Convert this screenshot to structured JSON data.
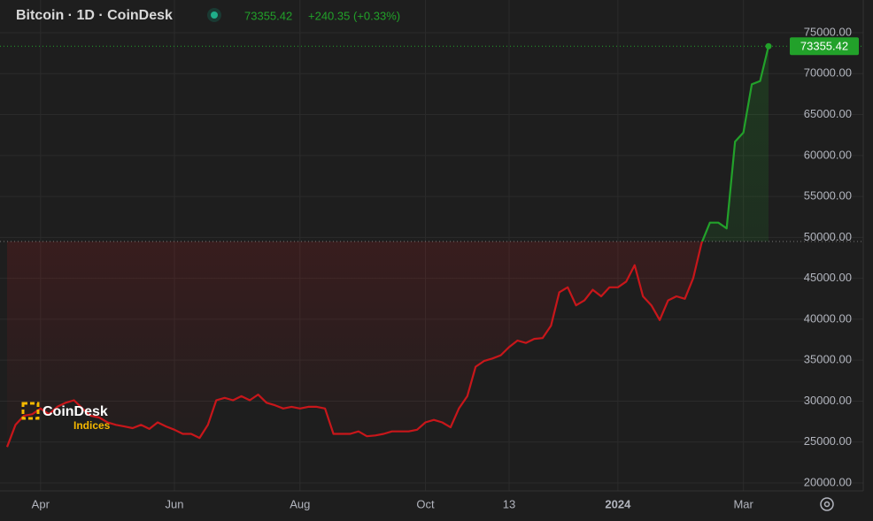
{
  "header": {
    "title": "Bitcoin · 1D · CoinDesk",
    "change": "+240.35 (+0.33%)"
  },
  "watermark": {
    "name": "CoinDesk",
    "sub": "Indices"
  },
  "chart_data": {
    "type": "line",
    "categories": [
      null,
      null,
      null,
      null,
      "Apr",
      null,
      null,
      null,
      null,
      null,
      null,
      null,
      null,
      null,
      null,
      null,
      null,
      null,
      null,
      null,
      "Jun",
      null,
      null,
      null,
      null,
      null,
      null,
      null,
      null,
      null,
      null,
      null,
      null,
      null,
      null,
      "Aug",
      null,
      null,
      null,
      null,
      null,
      null,
      null,
      null,
      null,
      null,
      null,
      null,
      null,
      null,
      "Oct",
      null,
      null,
      null,
      null,
      null,
      null,
      null,
      null,
      null,
      "13",
      null,
      null,
      null,
      null,
      null,
      null,
      null,
      null,
      null,
      null,
      null,
      null,
      "2024",
      null,
      null,
      null,
      null,
      null,
      null,
      null,
      null,
      null,
      null,
      null,
      null,
      null,
      null,
      "Mar",
      null,
      null,
      null
    ],
    "values": [
      24400,
      27100,
      28200,
      28400,
      29100,
      28400,
      29300,
      29800,
      30100,
      29100,
      28200,
      28000,
      27400,
      27100,
      26900,
      26700,
      27100,
      26600,
      27400,
      26900,
      26500,
      26000,
      26000,
      25500,
      27100,
      30100,
      30400,
      30100,
      30600,
      30100,
      30800,
      29800,
      29500,
      29100,
      29300,
      29100,
      29300,
      29300,
      29100,
      26000,
      26000,
      26000,
      26300,
      25700,
      25800,
      26000,
      26300,
      26300,
      26300,
      26500,
      27400,
      27700,
      27400,
      26800,
      29100,
      30600,
      34200,
      34900,
      35200,
      35600,
      36600,
      37400,
      37100,
      37600,
      37700,
      39200,
      43300,
      43900,
      41700,
      42300,
      43600,
      42800,
      43900,
      43900,
      44600,
      46600,
      42800,
      41700,
      39900,
      42300,
      42800,
      42500,
      45000,
      49300,
      51800,
      51800,
      51100,
      61700,
      62800,
      68700,
      69100,
      73355.42
    ],
    "baseline": 49500,
    "below_color": "#c8161a",
    "above_color": "#22a12a",
    "ylim": [
      20000,
      75000
    ],
    "yticks": [
      {
        "value": 75000,
        "label": "75000.00"
      },
      {
        "value": 70000,
        "label": "70000.00"
      },
      {
        "value": 65000,
        "label": "65000.00"
      },
      {
        "value": 60000,
        "label": "60000.00"
      },
      {
        "value": 55000,
        "label": "55000.00"
      },
      {
        "value": 50000,
        "label": "50000.00"
      },
      {
        "value": 45000,
        "label": "45000.00"
      },
      {
        "value": 40000,
        "label": "40000.00"
      },
      {
        "value": 35000,
        "label": "35000.00"
      },
      {
        "value": 30000,
        "label": "30000.00"
      },
      {
        "value": 25000,
        "label": "25000.00"
      },
      {
        "value": 20000,
        "label": "20000.00"
      }
    ],
    "grid": true
  }
}
